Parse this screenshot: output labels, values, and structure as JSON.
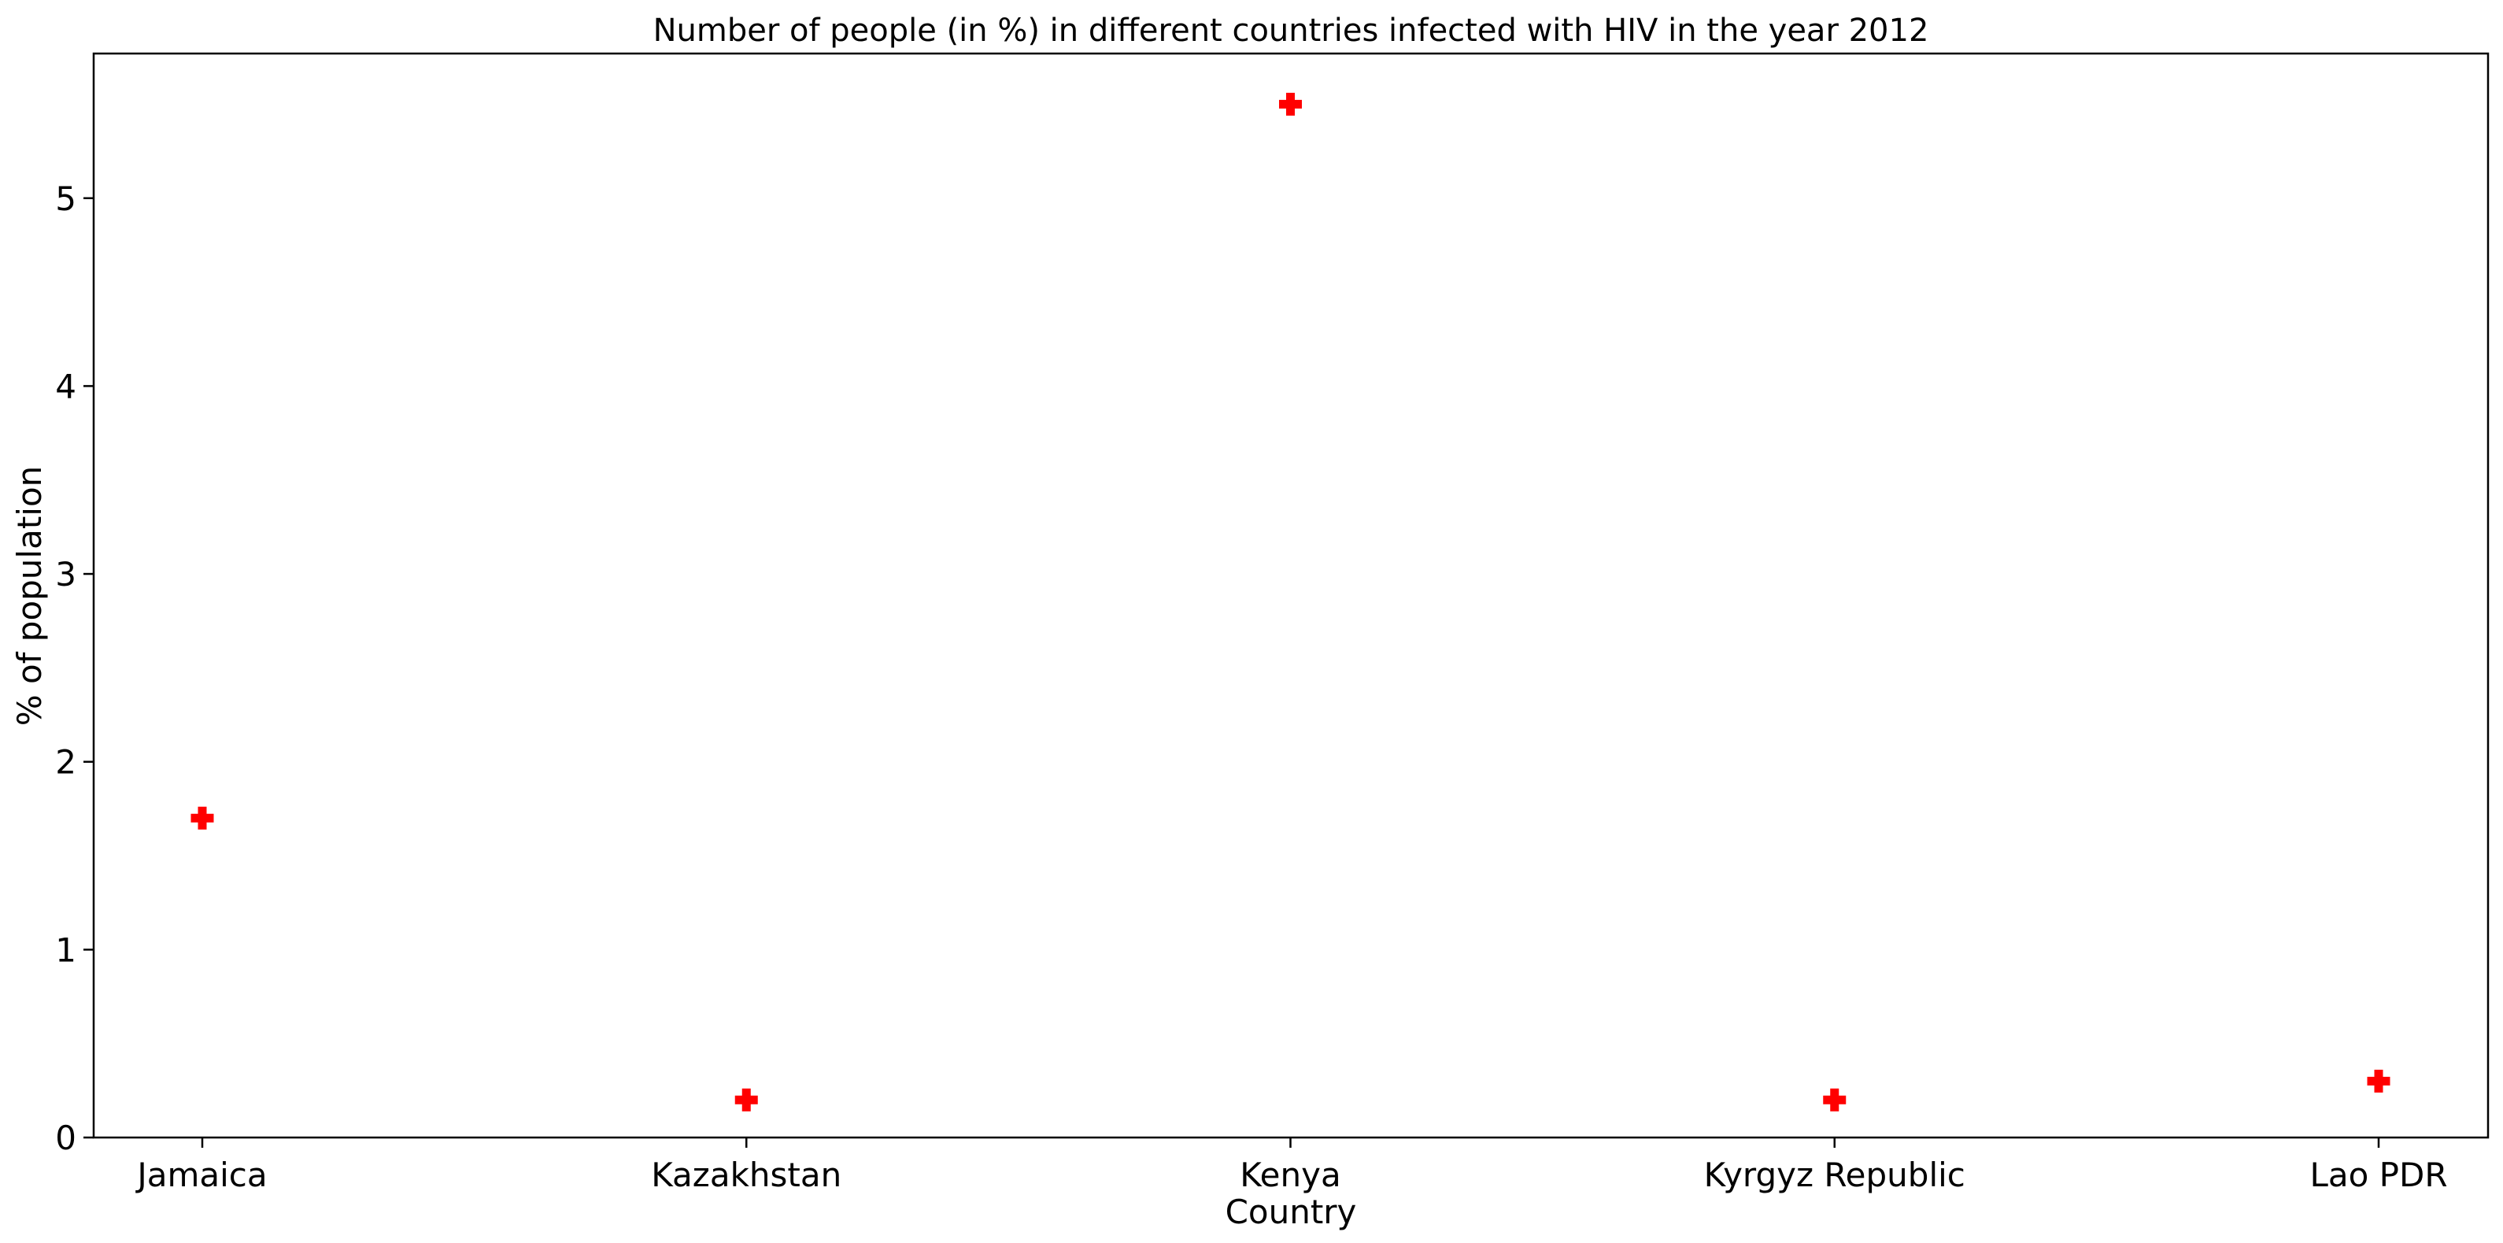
{
  "chart_data": {
    "type": "scatter",
    "title": "Number of people (in %) in different countries infected with HIV in the year 2012",
    "xlabel": "Country",
    "ylabel": "% of population",
    "categories": [
      "Jamaica",
      "Kazakhstan",
      "Kenya",
      "Kyrgyz Republic",
      "Lao PDR"
    ],
    "values": [
      1.7,
      0.2,
      5.5,
      0.2,
      0.3
    ],
    "ylim": [
      0,
      5.77
    ],
    "yticks": [
      0,
      1,
      2,
      3,
      4,
      5
    ],
    "marker": "plus-filled",
    "marker_color": "#ff0000",
    "grid": false,
    "legend": "none"
  }
}
